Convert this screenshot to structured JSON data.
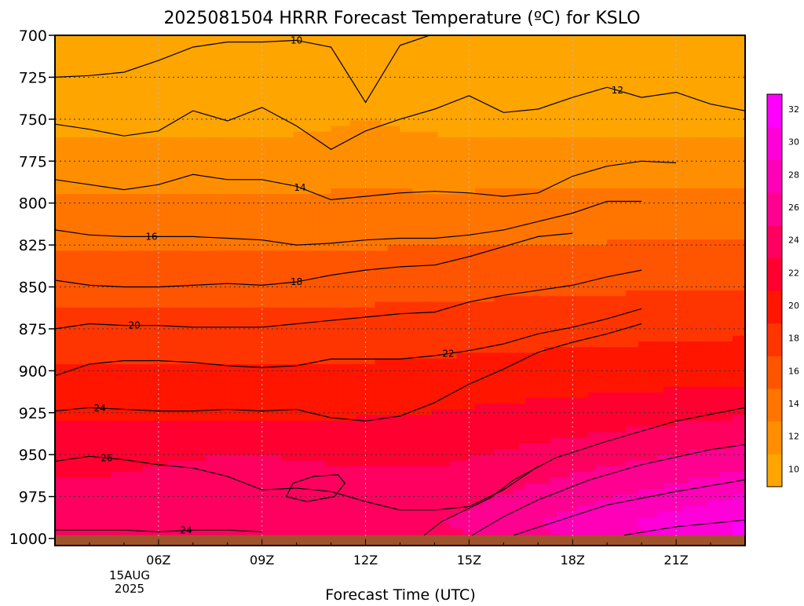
{
  "chart_data": {
    "type": "contour",
    "title": "2025081504 HRRR Forecast Temperature (ºC) for KSLO",
    "xlabel": "Forecast Time (UTC)",
    "ylabel": "",
    "x_ticks": [
      "06Z",
      "09Z",
      "12Z",
      "15Z",
      "18Z",
      "21Z"
    ],
    "x_tick_values": [
      6,
      9,
      12,
      15,
      18,
      21
    ],
    "date_label": [
      "15AUG",
      "2025"
    ],
    "xlim": [
      3,
      23
    ],
    "y_ticks": [
      700,
      725,
      750,
      775,
      800,
      825,
      850,
      875,
      900,
      925,
      950,
      975,
      1000
    ],
    "ylim": [
      1000,
      700
    ],
    "ground_pressure_hPa": 998,
    "contour_levels": [
      10,
      12,
      14,
      16,
      18,
      20,
      22,
      24,
      26,
      28,
      30,
      32
    ],
    "colorbar_labels": [
      "10",
      "12",
      "14",
      "16",
      "18",
      "20",
      "22",
      "24",
      "26",
      "28",
      "30",
      "32"
    ],
    "colorbar_colors": [
      "#ffa500",
      "#ff8f00",
      "#ff7500",
      "#ff5500",
      "#ff3500",
      "#ff1500",
      "#ff0030",
      "#ff0060",
      "#ff0090",
      "#ff00b8",
      "#ff00d8",
      "#ff00ff"
    ],
    "ground_color": "#a0522d",
    "gridlines": true,
    "isotherms": [
      {
        "level": 10,
        "label": "10",
        "label_at": [
          10,
          703
        ],
        "points": [
          [
            3,
            725
          ],
          [
            4,
            724
          ],
          [
            5,
            722
          ],
          [
            6,
            715
          ],
          [
            7,
            707
          ],
          [
            8,
            704
          ],
          [
            9,
            704
          ],
          [
            10,
            703
          ],
          [
            11,
            707
          ],
          [
            12,
            740
          ],
          [
            13,
            706
          ],
          [
            14,
            699
          ]
        ]
      },
      {
        "level": 12,
        "label": "12",
        "label_at": [
          19.3,
          732
        ],
        "points": [
          [
            3,
            753
          ],
          [
            4,
            756
          ],
          [
            5,
            760
          ],
          [
            6,
            757
          ],
          [
            7,
            745
          ],
          [
            8,
            751
          ],
          [
            9,
            743
          ],
          [
            10,
            754
          ],
          [
            11,
            768
          ],
          [
            12,
            757
          ],
          [
            13,
            750
          ],
          [
            14,
            744
          ],
          [
            15,
            736
          ],
          [
            16,
            746
          ],
          [
            17,
            744
          ],
          [
            18,
            737
          ],
          [
            19,
            731
          ],
          [
            20,
            737
          ],
          [
            21,
            734
          ],
          [
            22,
            741
          ],
          [
            23,
            745
          ]
        ]
      },
      {
        "level": 14,
        "label": "14",
        "label_at": [
          10.1,
          781
        ],
        "points": [
          [
            3,
            786
          ],
          [
            4,
            789
          ],
          [
            5,
            792
          ],
          [
            6,
            789
          ],
          [
            7,
            783
          ],
          [
            8,
            786
          ],
          [
            9,
            786
          ],
          [
            10,
            790
          ],
          [
            11,
            798
          ],
          [
            12,
            796
          ],
          [
            13,
            794
          ],
          [
            14,
            793
          ],
          [
            15,
            794
          ],
          [
            16,
            796
          ],
          [
            17,
            794
          ],
          [
            18,
            784
          ],
          [
            19,
            778
          ],
          [
            20,
            775
          ],
          [
            21,
            776
          ]
        ]
      },
      {
        "level": 16,
        "label": "16",
        "label_at": [
          5.8,
          820
        ],
        "points": [
          [
            3,
            816
          ],
          [
            4,
            819
          ],
          [
            5,
            820
          ],
          [
            6,
            820
          ],
          [
            7,
            820
          ],
          [
            8,
            821
          ],
          [
            9,
            822
          ],
          [
            10,
            825
          ],
          [
            11,
            824
          ],
          [
            12,
            822
          ],
          [
            13,
            821
          ],
          [
            14,
            821
          ],
          [
            15,
            819
          ],
          [
            16,
            816
          ],
          [
            17,
            811
          ],
          [
            18,
            806
          ],
          [
            19,
            799
          ],
          [
            20,
            799
          ]
        ]
      },
      {
        "level": 18,
        "label": "18",
        "label_at": [
          10,
          849
        ],
        "points": [
          [
            3,
            846
          ],
          [
            4,
            849
          ],
          [
            5,
            850
          ],
          [
            6,
            850
          ],
          [
            7,
            849
          ],
          [
            8,
            848
          ],
          [
            9,
            849
          ],
          [
            10,
            847
          ],
          [
            11,
            843
          ],
          [
            12,
            840
          ],
          [
            13,
            838
          ],
          [
            14,
            837
          ],
          [
            15,
            832
          ],
          [
            16,
            826
          ],
          [
            17,
            820
          ],
          [
            18,
            818
          ]
        ]
      },
      {
        "level": 20,
        "label": "20",
        "label_at": [
          5.3,
          874
        ],
        "points": [
          [
            3,
            875
          ],
          [
            4,
            872
          ],
          [
            5,
            873
          ],
          [
            6,
            873
          ],
          [
            7,
            874
          ],
          [
            8,
            874
          ],
          [
            9,
            874
          ],
          [
            10,
            872
          ],
          [
            11,
            870
          ],
          [
            12,
            868
          ],
          [
            13,
            866
          ],
          [
            14,
            865
          ],
          [
            15,
            859
          ],
          [
            16,
            855
          ],
          [
            17,
            852
          ],
          [
            18,
            849
          ],
          [
            19,
            844
          ],
          [
            20,
            840
          ]
        ]
      },
      {
        "level": 22,
        "label": "22",
        "label_at": [
          14.4,
          892
        ],
        "points": [
          [
            3,
            903
          ],
          [
            4,
            896
          ],
          [
            5,
            894
          ],
          [
            6,
            894
          ],
          [
            7,
            895
          ],
          [
            8,
            897
          ],
          [
            9,
            898
          ],
          [
            10,
            897
          ],
          [
            11,
            893
          ],
          [
            12,
            893
          ],
          [
            13,
            893
          ],
          [
            14,
            891
          ],
          [
            15,
            888
          ],
          [
            16,
            884
          ],
          [
            17,
            878
          ],
          [
            18,
            874
          ],
          [
            19,
            869
          ],
          [
            20,
            863
          ]
        ]
      },
      {
        "level": 24,
        "label": "24",
        "label_at": [
          4.3,
          923
        ],
        "points": [
          [
            3,
            924
          ],
          [
            4,
            922
          ],
          [
            5,
            923
          ],
          [
            6,
            924
          ],
          [
            7,
            924
          ],
          [
            8,
            923
          ],
          [
            9,
            924
          ],
          [
            10,
            923
          ],
          [
            11,
            928
          ],
          [
            12,
            930
          ],
          [
            13,
            927
          ],
          [
            14,
            919
          ],
          [
            15,
            908
          ],
          [
            16,
            899
          ],
          [
            17,
            889
          ],
          [
            18,
            883
          ],
          [
            19,
            878
          ],
          [
            20,
            872
          ]
        ]
      },
      {
        "level": 26,
        "label": "26",
        "label_at": [
          4.5,
          957
        ],
        "points": [
          [
            3,
            954
          ],
          [
            4,
            951
          ],
          [
            5,
            953
          ],
          [
            6,
            956
          ],
          [
            7,
            958
          ],
          [
            8,
            963
          ],
          [
            9,
            971
          ],
          [
            10,
            970
          ],
          [
            11,
            972
          ],
          [
            12,
            978
          ],
          [
            13,
            983
          ],
          [
            14,
            983
          ],
          [
            15,
            981
          ],
          [
            16,
            971
          ],
          [
            17,
            957
          ]
        ]
      },
      {
        "level": 24,
        "label": "24",
        "label_at": [
          6.8,
          996
        ],
        "points": [
          [
            3,
            995
          ],
          [
            4,
            995
          ],
          [
            5,
            995
          ],
          [
            6,
            996
          ],
          [
            7,
            995
          ],
          [
            8,
            995
          ],
          [
            9,
            996
          ]
        ]
      }
    ]
  }
}
